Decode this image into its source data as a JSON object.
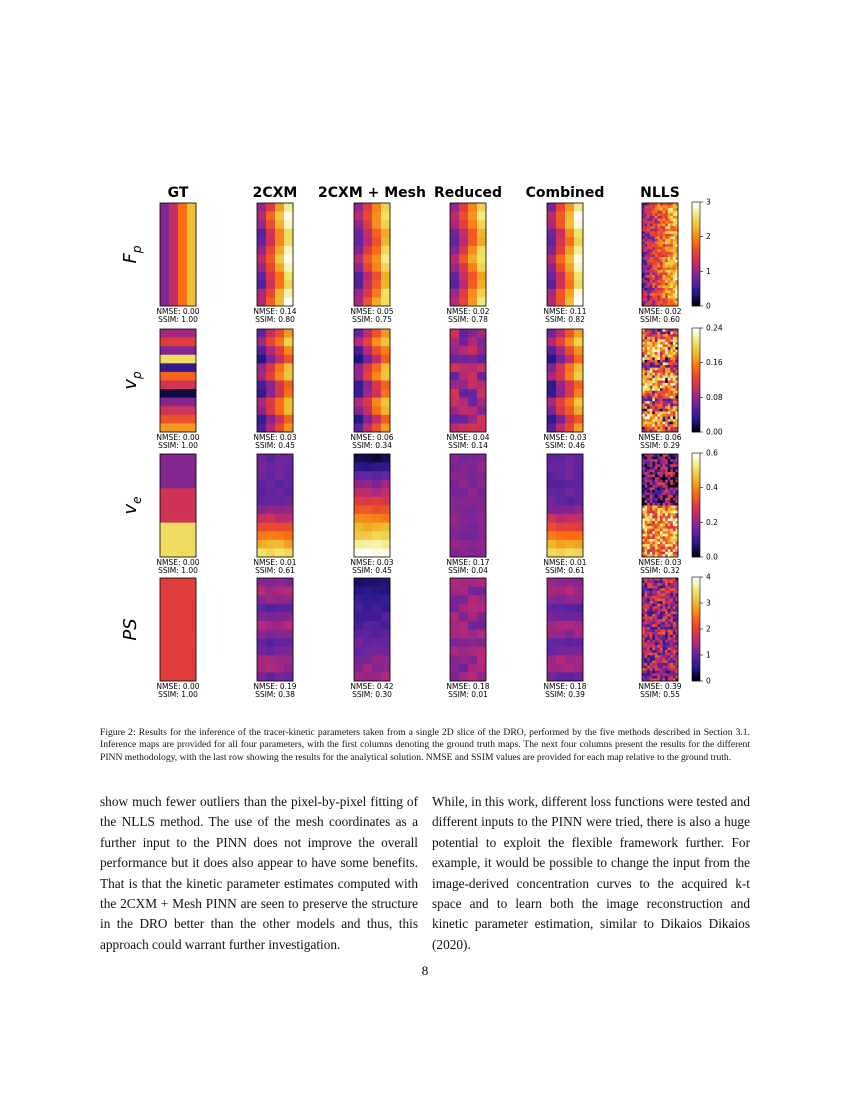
{
  "figure": {
    "column_titles": [
      "GT",
      "2CXM",
      "2CXM + Mesh",
      "Reduced",
      "Combined",
      "NLLS"
    ],
    "rows": [
      {
        "label": "F",
        "subscript": "p",
        "metrics": [
          [
            "NMSE: 0.00",
            "SSIM: 1.00"
          ],
          [
            "NMSE: 0.14",
            "SSIM: 0.80"
          ],
          [
            "NMSE: 0.05",
            "SSIM: 0.75"
          ],
          [
            "NMSE: 0.02",
            "SSIM: 0.78"
          ],
          [
            "NMSE: 0.11",
            "SSIM: 0.82"
          ],
          [
            "NMSE: 0.02",
            "SSIM: 0.60"
          ]
        ],
        "colorbar_ticks": [
          "0",
          "1",
          "2",
          "3"
        ]
      },
      {
        "label": "v",
        "subscript": "p",
        "metrics": [
          [
            "NMSE: 0.00",
            "SSIM: 1.00"
          ],
          [
            "NMSE: 0.03",
            "SSIM: 0.45"
          ],
          [
            "NMSE: 0.06",
            "SSIM: 0.34"
          ],
          [
            "NMSE: 0.04",
            "SSIM: 0.14"
          ],
          [
            "NMSE: 0.03",
            "SSIM: 0.46"
          ],
          [
            "NMSE: 0.06",
            "SSIM: 0.29"
          ]
        ],
        "colorbar_ticks": [
          "0.00",
          "0.08",
          "0.16",
          "0.24"
        ]
      },
      {
        "label": "v",
        "subscript": "e",
        "metrics": [
          [
            "NMSE: 0.00",
            "SSIM: 1.00"
          ],
          [
            "NMSE: 0.01",
            "SSIM: 0.61"
          ],
          [
            "NMSE: 0.03",
            "SSIM: 0.45"
          ],
          [
            "NMSE: 0.17",
            "SSIM: 0.04"
          ],
          [
            "NMSE: 0.01",
            "SSIM: 0.61"
          ],
          [
            "NMSE: 0.03",
            "SSIM: 0.32"
          ]
        ],
        "colorbar_ticks": [
          "0.0",
          "0.2",
          "0.4",
          "0.6"
        ]
      },
      {
        "label": "PS",
        "metrics": [
          [
            "NMSE: 0.00",
            "SSIM: 1.00"
          ],
          [
            "NMSE: 0.19",
            "SSIM: 0.38"
          ],
          [
            "NMSE: 0.42",
            "SSIM: 0.30"
          ],
          [
            "NMSE: 0.18",
            "SSIM: 0.01"
          ],
          [
            "NMSE: 0.18",
            "SSIM: 0.39"
          ],
          [
            "NMSE: 0.39",
            "SSIM: 0.55"
          ]
        ],
        "colorbar_ticks": [
          "0",
          "1",
          "2",
          "3",
          "4"
        ]
      }
    ],
    "caption": "Figure 2: Results for the inference of the tracer-kinetic parameters taken from a single 2D slice of the DRO, performed by the five methods described in Section 3.1. Inference maps are provided for all four parameters, with the first columns denoting the ground truth maps. The next four columns present the results for the different PINN methodology, with the last row showing the results for the analytical solution. NMSE and SSIM values are provided for each map relative to the ground truth."
  },
  "body": {
    "left": "show much fewer outliers than the pixel-by-pixel fitting of the NLLS method. The use of the mesh coordinates as a further input to the PINN does not improve the overall performance but it does also appear to have some benefits. That is that the kinetic parameter estimates computed with the 2CXM + Mesh PINN are seen to preserve the structure in the DRO better than the other models and thus, this approach could warrant further investigation.",
    "right": "While, in this work, different loss functions were tested and different inputs to the PINN were tried, there is also a huge potential to exploit the flexible framework further. For example, it would be possible to change the input from the image-derived concentration curves to the acquired k-t space and to learn both the image reconstruction and kinetic parameter estimation, similar to Dikaios Dikaios (2020)."
  },
  "page_number": "8"
}
